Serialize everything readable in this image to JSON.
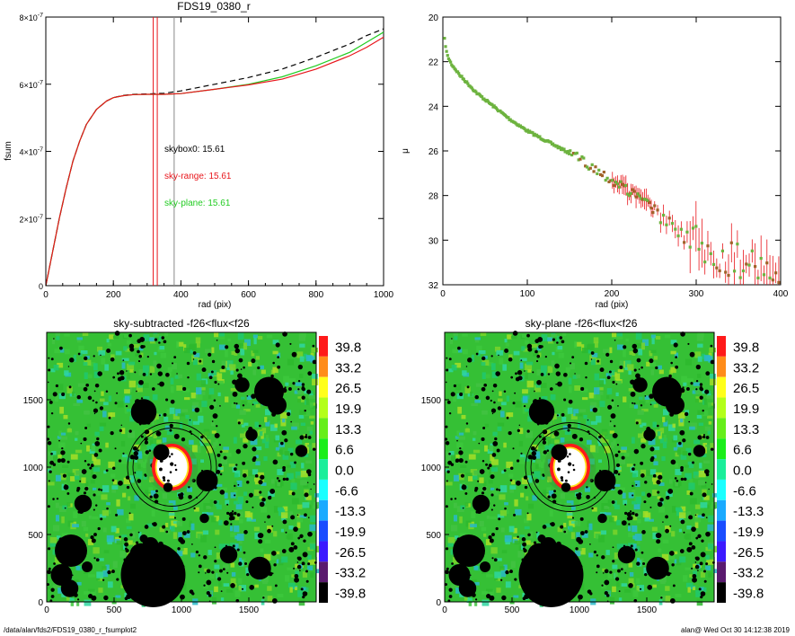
{
  "chart_data": [
    {
      "type": "line",
      "title": "FDS19_0380_r",
      "xlabel": "rad (pix)",
      "ylabel": "fsum",
      "xlim": [
        0,
        1000
      ],
      "ylim": [
        0,
        8e-07
      ],
      "xticks": [
        "0",
        "200",
        "400",
        "600",
        "800",
        "1000"
      ],
      "yticks": [
        {
          "mant": "0",
          "exp": ""
        },
        {
          "mant": "2×10",
          "exp": "-7"
        },
        {
          "mant": "4×10",
          "exp": "-7"
        },
        {
          "mant": "6×10",
          "exp": "-7"
        },
        {
          "mant": "8×10",
          "exp": "-7"
        }
      ],
      "vlines": [
        {
          "x": 318,
          "color": "#e8151b"
        },
        {
          "x": 330,
          "color": "#e8151b"
        },
        {
          "x": 380,
          "color": "#888888"
        }
      ],
      "annotations": [
        {
          "text": "skybox0: 15.61",
          "color": "#000000"
        },
        {
          "text": "sky-range: 15.61",
          "color": "#e8151b"
        },
        {
          "text": "sky-plane: 15.61",
          "color": "#22cc22"
        }
      ],
      "series": [
        {
          "style": "dashed",
          "color": "#000000",
          "x": [
            0,
            20,
            40,
            60,
            80,
            100,
            120,
            150,
            180,
            200,
            230,
            260,
            300,
            350,
            400,
            500,
            600,
            700,
            800,
            900,
            950,
            1000
          ],
          "y": [
            0,
            1e-07,
            2e-07,
            2.9e-07,
            3.7e-07,
            4.3e-07,
            4.8e-07,
            5.25e-07,
            5.5e-07,
            5.6e-07,
            5.67e-07,
            5.7e-07,
            5.71e-07,
            5.73e-07,
            5.8e-07,
            6e-07,
            6.2e-07,
            6.45e-07,
            6.8e-07,
            7.2e-07,
            7.45e-07,
            7.65e-07
          ]
        },
        {
          "style": "solid",
          "color": "#22cc22",
          "x": [
            0,
            20,
            40,
            60,
            80,
            100,
            120,
            150,
            180,
            200,
            230,
            260,
            300,
            350,
            400,
            500,
            600,
            700,
            800,
            900,
            950,
            1000
          ],
          "y": [
            0,
            1e-07,
            2e-07,
            2.9e-07,
            3.7e-07,
            4.3e-07,
            4.8e-07,
            5.25e-07,
            5.5e-07,
            5.6e-07,
            5.66e-07,
            5.69e-07,
            5.7e-07,
            5.7e-07,
            5.72e-07,
            5.85e-07,
            6e-07,
            6.22e-07,
            6.55e-07,
            6.95e-07,
            7.25e-07,
            7.55e-07
          ]
        },
        {
          "style": "solid",
          "color": "#e8151b",
          "x": [
            0,
            20,
            40,
            60,
            80,
            100,
            120,
            150,
            180,
            200,
            230,
            260,
            300,
            350,
            400,
            500,
            600,
            700,
            800,
            900,
            950,
            1000
          ],
          "y": [
            0,
            1e-07,
            2e-07,
            2.9e-07,
            3.7e-07,
            4.3e-07,
            4.8e-07,
            5.25e-07,
            5.5e-07,
            5.6e-07,
            5.66e-07,
            5.69e-07,
            5.7e-07,
            5.7e-07,
            5.72e-07,
            5.85e-07,
            5.98e-07,
            6.15e-07,
            6.45e-07,
            6.85e-07,
            7.1e-07,
            7.4e-07
          ]
        }
      ]
    },
    {
      "type": "scatter",
      "title": "",
      "xlabel": "rad (pix)",
      "ylabel": "μ",
      "xlim": [
        0,
        400
      ],
      "ylim": [
        32,
        20
      ],
      "xticks": [
        "0",
        "100",
        "200",
        "300",
        "400"
      ],
      "yticks": [
        "20",
        "22",
        "24",
        "26",
        "28",
        "30",
        "32"
      ],
      "profile": {
        "x": [
          2,
          5,
          10,
          20,
          40,
          60,
          80,
          100,
          120,
          140,
          160,
          180,
          200,
          220,
          240,
          260,
          280,
          300,
          320,
          340,
          360,
          380,
          400
        ],
        "y": [
          21.0,
          21.7,
          22.1,
          22.6,
          23.4,
          24.0,
          24.6,
          25.1,
          25.5,
          25.9,
          26.3,
          26.8,
          27.3,
          27.8,
          28.3,
          28.9,
          29.5,
          30.1,
          30.5,
          30.8,
          30.9,
          31.0,
          31.1
        ]
      },
      "colors": {
        "inner": "#6db33f",
        "outer": "#a0632a",
        "error": "#e8151b"
      }
    },
    {
      "type": "heatmap",
      "title": "sky-subtracted -f26<flux<f26",
      "xlim": [
        0,
        2000
      ],
      "ylim": [
        0,
        2000
      ],
      "xticks": [
        "0",
        "500",
        "1000",
        "1500"
      ],
      "yticks": [
        "0",
        "500",
        "1000",
        "1500"
      ],
      "colorbar": [
        "39.8",
        "33.2",
        "26.5",
        "19.9",
        "13.3",
        "6.6",
        "0.0",
        "-6.6",
        "-13.3",
        "-19.9",
        "-26.5",
        "-33.2",
        "-39.8"
      ],
      "colorbar_colors": [
        "#ff1a1a",
        "#ff8c1a",
        "#ffff1a",
        "#b3ff1a",
        "#66ee1a",
        "#1aee1a",
        "#1aee9a",
        "#1affff",
        "#1aaaff",
        "#1a4dff",
        "#3c1aff",
        "#5a1a6e",
        "#000000"
      ]
    },
    {
      "type": "heatmap",
      "title": "sky-plane -f26<flux<f26",
      "xlim": [
        0,
        2000
      ],
      "ylim": [
        0,
        2000
      ],
      "xticks": [
        "0",
        "500",
        "1000",
        "1500"
      ],
      "yticks": [
        "0",
        "500",
        "1000",
        "1500"
      ],
      "colorbar": [
        "39.8",
        "33.2",
        "26.5",
        "19.9",
        "13.3",
        "6.6",
        "0.0",
        "-6.6",
        "-13.3",
        "-19.9",
        "-26.5",
        "-33.2",
        "-39.8"
      ],
      "colorbar_colors": [
        "#ff1a1a",
        "#ff8c1a",
        "#ffff1a",
        "#b3ff1a",
        "#66ee1a",
        "#1aee1a",
        "#1aee9a",
        "#1affff",
        "#1aaaff",
        "#1a4dff",
        "#3c1aff",
        "#5a1a6e",
        "#000000"
      ]
    }
  ],
  "images": {
    "field_colors": [
      "#2db82d",
      "#3cc83c",
      "#7ad32a",
      "#a6de26",
      "#1ec870",
      "#2ed6a0",
      "#28b8c8",
      "#42c242"
    ],
    "masks": [
      {
        "x": 790,
        "y": 200,
        "r": 240
      },
      {
        "x": 180,
        "y": 380,
        "r": 120
      },
      {
        "x": 110,
        "y": 200,
        "r": 80
      },
      {
        "x": 170,
        "y": 100,
        "r": 65
      },
      {
        "x": 700,
        "y": 350,
        "r": 85
      },
      {
        "x": 770,
        "y": 420,
        "r": 60
      },
      {
        "x": 1580,
        "y": 250,
        "r": 85
      },
      {
        "x": 1350,
        "y": 350,
        "r": 65
      },
      {
        "x": 1190,
        "y": 900,
        "r": 80
      },
      {
        "x": 1650,
        "y": 1560,
        "r": 110
      },
      {
        "x": 1710,
        "y": 1460,
        "r": 70
      },
      {
        "x": 720,
        "y": 1410,
        "r": 95
      },
      {
        "x": 850,
        "y": 1110,
        "r": 60
      },
      {
        "x": 270,
        "y": 730,
        "r": 65
      },
      {
        "x": 720,
        "y": 470,
        "r": 30
      },
      {
        "x": 900,
        "y": 850,
        "r": 35
      },
      {
        "x": 1520,
        "y": 1240,
        "r": 45
      },
      {
        "x": 1170,
        "y": 620,
        "r": 35
      },
      {
        "x": 300,
        "y": 260,
        "r": 40
      },
      {
        "x": 1890,
        "y": 1120,
        "r": 45
      },
      {
        "x": 1450,
        "y": 1610,
        "r": 55
      }
    ],
    "galaxy": {
      "x": 930,
      "y": 1000,
      "r": 120
    },
    "circles": [
      {
        "x": 930,
        "y": 1000,
        "r": 290
      },
      {
        "x": 930,
        "y": 1000,
        "r": 330
      }
    ]
  },
  "footer": {
    "left": "/data/alan/fds2/FDS19_0380_r_fsumplot2",
    "right": "alan@  Wed Oct 30 14:12:38 2019"
  }
}
